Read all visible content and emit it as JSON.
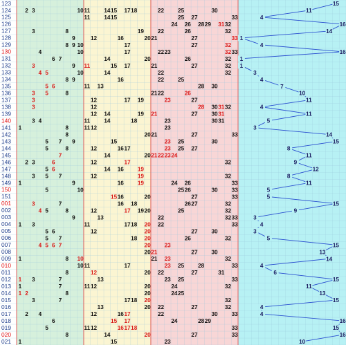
{
  "chart_data": {
    "type": "table",
    "title": "",
    "zones": [
      {
        "name": "zone-1",
        "min": 1,
        "max": 10,
        "color": "#d6f0dc"
      },
      {
        "name": "zone-2",
        "min": 11,
        "max": 20,
        "color": "#fbf5d2"
      },
      {
        "name": "zone-3",
        "min": 21,
        "max": 33,
        "color": "#f8d6d6"
      },
      {
        "name": "trend",
        "min": 1,
        "max": 16,
        "color": "#b7f1f4"
      }
    ],
    "colors": {
      "issue_black": "#1a3b8a",
      "issue_red": "#e01010",
      "num_black": "#111111",
      "num_red": "#d81818",
      "trend_line": "#2a4fd0",
      "grid": "#9bc7dc"
    },
    "rows": [
      {
        "issue": "123",
        "b": [],
        "r": [],
        "blue": 15
      },
      {
        "issue": "124",
        "b": [
          2,
          3,
          10,
          11,
          14,
          15,
          17,
          18,
          22,
          25,
          30
        ],
        "r": [],
        "blue": 11
      },
      {
        "issue": "125",
        "b": [
          11,
          14,
          15,
          25,
          27,
          33
        ],
        "r": [],
        "blue": 4
      },
      {
        "issue": "126",
        "b": [
          24,
          26,
          28,
          29,
          32
        ],
        "r": [
          31
        ],
        "blue": 16
      },
      {
        "issue": "127",
        "b": [
          3,
          8,
          19,
          22,
          26,
          32
        ],
        "r": [],
        "blue": 14
      },
      {
        "issue": "128",
        "b": [
          9,
          12,
          16,
          20,
          21,
          27
        ],
        "r": [
          33
        ],
        "blue": 1
      },
      {
        "issue": "129",
        "b": [
          8,
          9,
          10,
          17,
          27
        ],
        "r": [
          32
        ],
        "blue": 4
      },
      {
        "issue": "130",
        "b": [
          4,
          10,
          17,
          22,
          23,
          33
        ],
        "r": [
          32
        ],
        "blue": 16
      },
      {
        "issue": "131",
        "b": [
          6,
          7,
          14,
          20,
          26,
          32
        ],
        "r": [],
        "blue": 1
      },
      {
        "issue": "132",
        "b": [
          9,
          15,
          17,
          21,
          27,
          32
        ],
        "r": [
          3,
          11
        ],
        "blue": 1
      },
      {
        "issue": "133",
        "b": [
          10,
          14,
          22,
          32
        ],
        "r": [
          4,
          5
        ],
        "blue": 3
      },
      {
        "issue": "134",
        "b": [
          8,
          9,
          16,
          22,
          25
        ],
        "r": [],
        "blue": 4
      },
      {
        "issue": "135",
        "b": [
          11,
          13,
          28,
          30
        ],
        "r": [
          5,
          6
        ],
        "blue": 7
      },
      {
        "issue": "136",
        "b": [
          8,
          21,
          22
        ],
        "r": [
          3,
          5,
          26
        ],
        "blue": 10
      },
      {
        "issue": "137",
        "b": [
          12,
          17,
          19,
          27
        ],
        "r": [
          3,
          23
        ],
        "blue": 11
      },
      {
        "issue": "138",
        "b": [
          12,
          30,
          32
        ],
        "r": [
          3,
          28,
          31
        ],
        "blue": 4
      },
      {
        "issue": "139",
        "b": [
          12,
          14,
          19,
          27,
          30
        ],
        "r": [
          21,
          31
        ],
        "blue": 11
      },
      {
        "issue": "140",
        "b": [
          3,
          4,
          11,
          14,
          18,
          23,
          30,
          31
        ],
        "r": [],
        "blue": 5
      },
      {
        "issue": "141",
        "b": [
          1,
          8,
          11,
          12,
          23
        ],
        "r": [],
        "blue": 3
      },
      {
        "issue": "142",
        "b": [
          8,
          20,
          21,
          27,
          33
        ],
        "r": [],
        "blue": 14
      },
      {
        "issue": "143",
        "b": [
          5,
          7,
          9,
          15,
          25,
          30
        ],
        "r": [
          23
        ],
        "blue": 15
      },
      {
        "issue": "144",
        "b": [
          5,
          8,
          12,
          16,
          17,
          25,
          27
        ],
        "r": [
          23
        ],
        "blue": 8
      },
      {
        "issue": "145",
        "b": [
          14,
          20
        ],
        "r": [
          7,
          21,
          22,
          23,
          24
        ],
        "blue": 11
      },
      {
        "issue": "146",
        "b": [
          2,
          3,
          12,
          32
        ],
        "r": [
          6,
          17
        ],
        "blue": 9
      },
      {
        "issue": "147",
        "b": [
          5,
          14,
          16
        ],
        "r": [
          6,
          19
        ],
        "blue": 12
      },
      {
        "issue": "148",
        "b": [
          3,
          5,
          7,
          12,
          32
        ],
        "r": [
          19
        ],
        "blue": 8
      },
      {
        "issue": "149",
        "b": [
          1,
          9,
          16,
          24,
          26,
          33
        ],
        "r": [
          19
        ],
        "blue": 11
      },
      {
        "issue": "150",
        "b": [
          5,
          10,
          25,
          26,
          30,
          33
        ],
        "r": [],
        "blue": 5
      },
      {
        "issue": "151",
        "b": [
          16,
          20,
          27,
          33
        ],
        "r": [
          15
        ],
        "blue": 5
      },
      {
        "issue": "001",
        "b": [
          7,
          16,
          18,
          26,
          27,
          32
        ],
        "r": [
          3
        ],
        "blue": 15
      },
      {
        "issue": "002",
        "b": [
          5,
          8,
          12,
          19,
          20,
          25,
          32
        ],
        "r": [
          4,
          17
        ],
        "blue": 9
      },
      {
        "issue": "003",
        "b": [
          9,
          13,
          22,
          32,
          33
        ],
        "r": [],
        "blue": 3
      },
      {
        "issue": "004",
        "b": [
          1,
          3,
          11,
          17,
          18,
          22,
          33
        ],
        "r": [
          20
        ],
        "blue": 4
      },
      {
        "issue": "005",
        "b": [
          5,
          6,
          12,
          27,
          30
        ],
        "r": [
          20
        ],
        "blue": 3
      },
      {
        "issue": "006",
        "b": [
          5,
          7,
          18,
          26,
          32
        ],
        "r": [
          20
        ],
        "blue": 5
      },
      {
        "issue": "007",
        "b": [],
        "r": [
          4,
          5,
          6,
          7,
          20,
          23
        ],
        "blue": 15
      },
      {
        "issue": "008",
        "b": [
          20,
          27,
          30
        ],
        "r": [
          21
        ],
        "blue": 13
      },
      {
        "issue": "009",
        "b": [
          1,
          8,
          21,
          32
        ],
        "r": [
          10,
          23
        ],
        "blue": 14
      },
      {
        "issue": "010",
        "b": [
          10,
          11,
          17,
          25,
          28,
          33
        ],
        "r": [
          23
        ],
        "blue": 4
      },
      {
        "issue": "011",
        "b": [
          8,
          20,
          22,
          27,
          31
        ],
        "r": [
          12
        ],
        "blue": 6
      },
      {
        "issue": "012",
        "b": [
          3,
          7,
          13,
          23,
          25,
          33
        ],
        "r": [
          1
        ],
        "blue": 15
      },
      {
        "issue": "013",
        "b": [
          1,
          7,
          11,
          12,
          20,
          24,
          32
        ],
        "r": [],
        "blue": 11
      },
      {
        "issue": "014",
        "b": [
          8,
          20,
          24,
          25
        ],
        "r": [
          1,
          2
        ],
        "blue": 13
      },
      {
        "issue": "015",
        "b": [
          3,
          7,
          17,
          18,
          32
        ],
        "r": [
          20
        ],
        "blue": 15
      },
      {
        "issue": "016",
        "b": [
          13,
          20,
          22,
          27,
          32
        ],
        "r": [],
        "blue": 4
      },
      {
        "issue": "017",
        "b": [
          2,
          4,
          12,
          16,
          22,
          30,
          33
        ],
        "r": [
          17
        ],
        "blue": 4
      },
      {
        "issue": "018",
        "b": [
          6,
          24,
          28,
          29
        ],
        "r": [
          15,
          17
        ],
        "blue": 16
      },
      {
        "issue": "019",
        "b": [
          5,
          11,
          12,
          33
        ],
        "r": [
          16,
          17,
          18
        ],
        "blue": 15
      },
      {
        "issue": "020",
        "b": [
          8,
          14,
          27,
          33
        ],
        "r": [
          20
        ],
        "blue": 16
      },
      {
        "issue": "021",
        "b": [
          1,
          15,
          23
        ],
        "r": [],
        "blue": 10
      }
    ]
  }
}
